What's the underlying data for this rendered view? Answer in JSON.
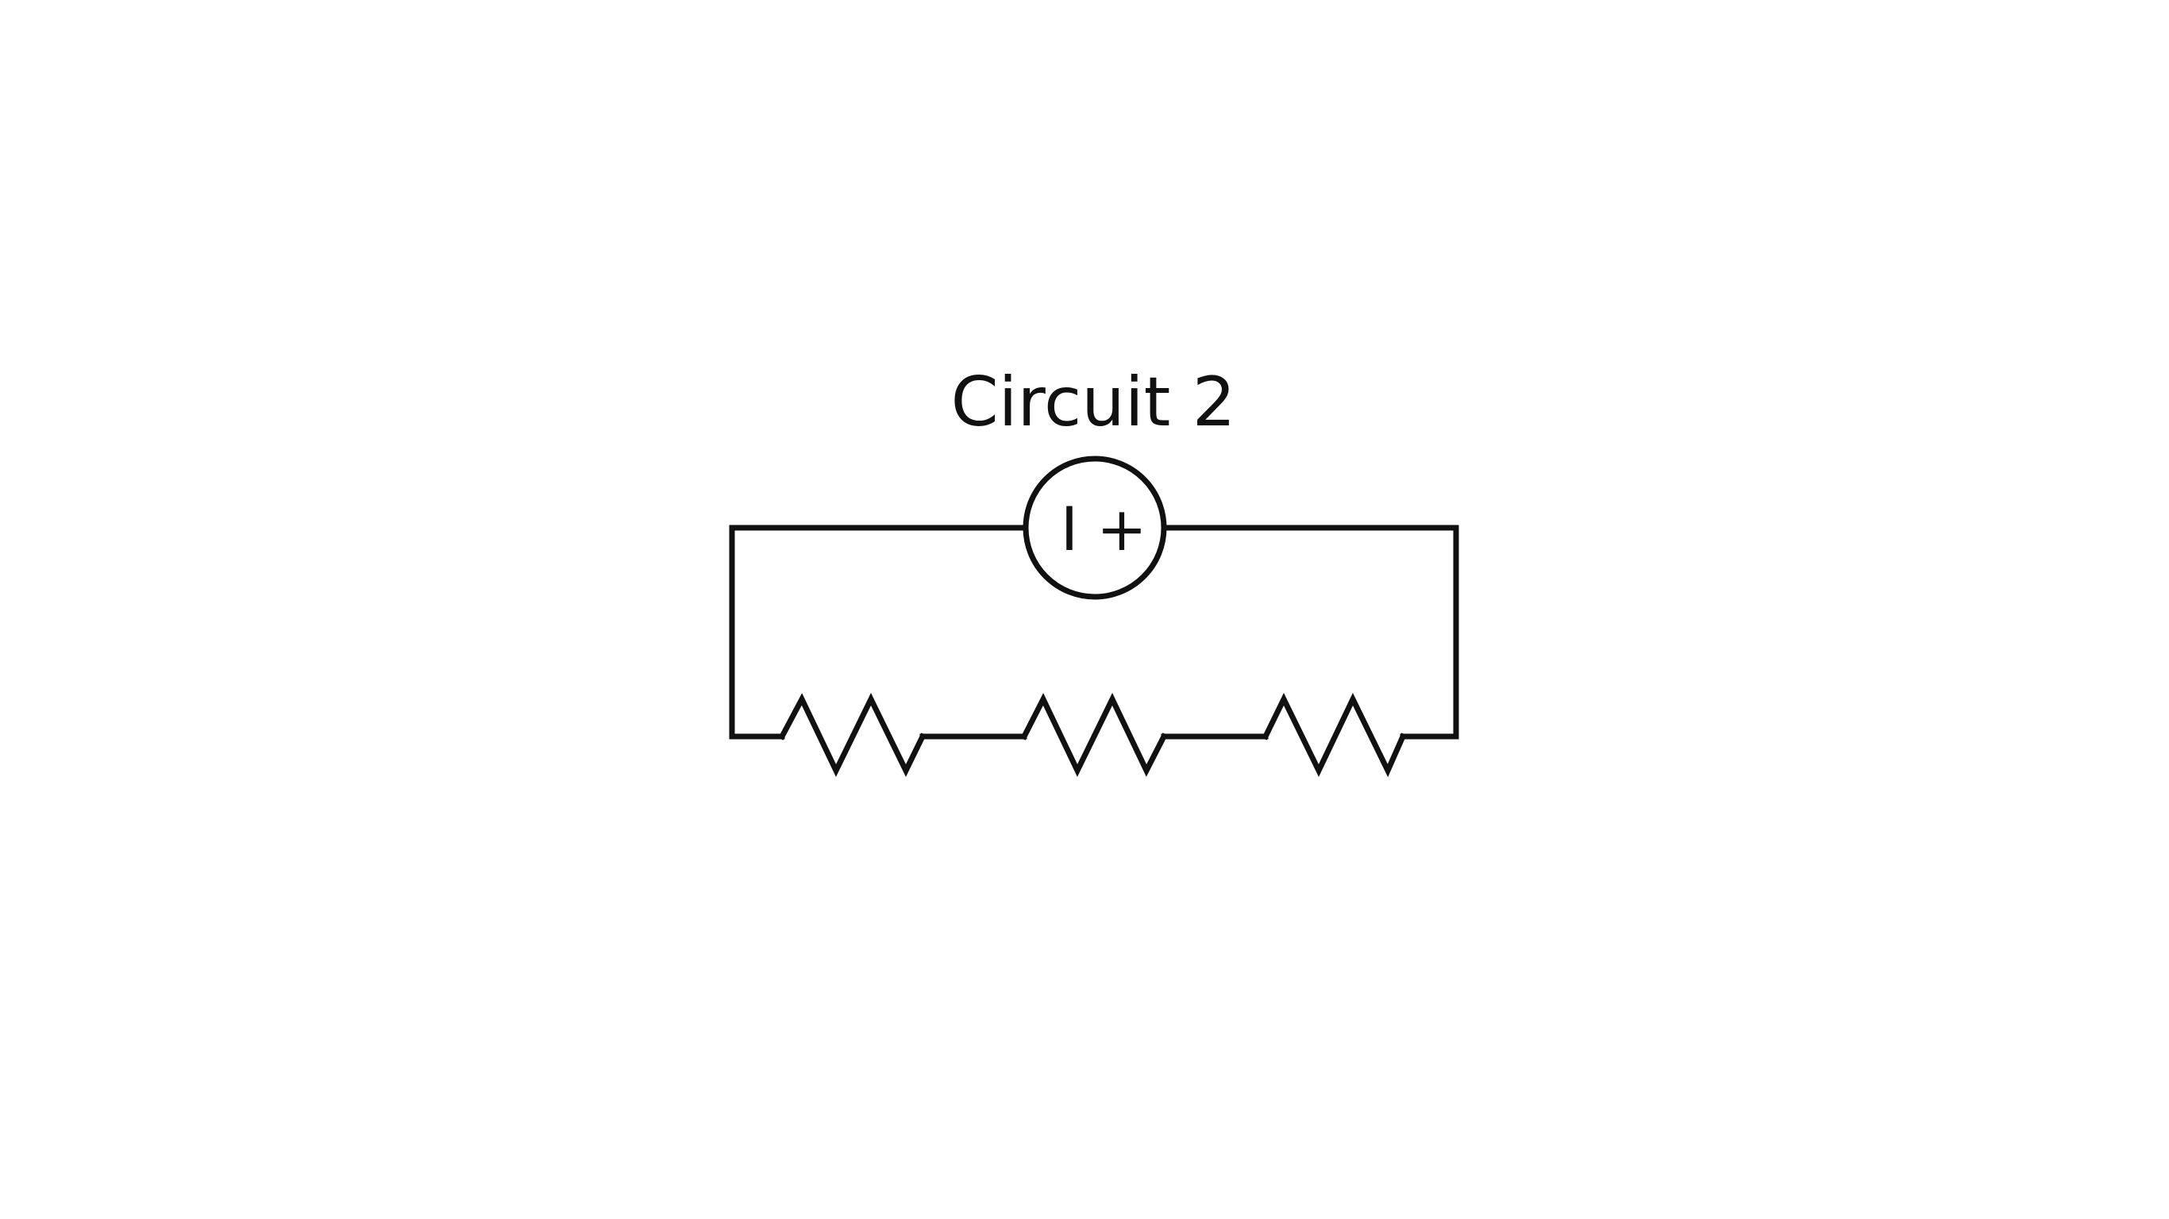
{
  "diagram": {
    "title": "Circuit 2",
    "source": {
      "symbol": "current-source",
      "label_current": "I",
      "label_polarity": "+"
    },
    "resistors": [
      {
        "name": "resistor-1"
      },
      {
        "name": "resistor-2"
      },
      {
        "name": "resistor-3"
      }
    ],
    "colors": {
      "stroke": "#111111",
      "background": "#ffffff"
    }
  }
}
